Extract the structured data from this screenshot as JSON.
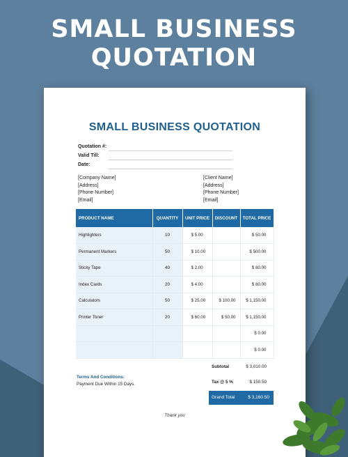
{
  "hero": {
    "title_line1": "SMALL BUSINESS",
    "title_line2": "QUOTATION"
  },
  "doc": {
    "title": "SMALL BUSINESS QUOTATION",
    "meta": [
      {
        "label": "Quotation #:"
      },
      {
        "label": "Valid Till:"
      },
      {
        "label": "Date:"
      }
    ],
    "company": [
      "[Company Name]",
      "[Address]",
      "[Phone Number]",
      "[Email]"
    ],
    "client": [
      "[Client Name]",
      "[Address]",
      "[Phone Number]",
      "[Email]"
    ],
    "table": {
      "headers": [
        "PRODUCT NAME",
        "QUANTITY",
        "UNIT PRICE",
        "DISCOUNT",
        "TOTAL PRICE"
      ],
      "rows": [
        {
          "name": "Highlighters",
          "qty": "10",
          "price": "$ 5.00",
          "discount": "",
          "total": "$ 50.00"
        },
        {
          "name": "Permanent Markers",
          "qty": "50",
          "price": "$ 10.00",
          "discount": "",
          "total": "$ 500.00"
        },
        {
          "name": "Sticky Tape",
          "qty": "40",
          "price": "$ 2.00",
          "discount": "",
          "total": "$ 80.00"
        },
        {
          "name": "Index Cards",
          "qty": "20",
          "price": "$ 4.00",
          "discount": "",
          "total": "$ 80.00"
        },
        {
          "name": "Calculators",
          "qty": "50",
          "price": "$ 25.00",
          "discount": "$ 100.00",
          "total": "$ 1,150.00"
        },
        {
          "name": "Printer Toner",
          "qty": "20",
          "price": "$ 60.00",
          "discount": "$ 50.00",
          "total": "$ 1,150.00"
        },
        {
          "name": "",
          "qty": "",
          "price": "",
          "discount": "",
          "total": "$ 0.00"
        },
        {
          "name": "",
          "qty": "",
          "price": "",
          "discount": "",
          "total": "$ 0.00"
        }
      ]
    },
    "summary": {
      "subtotal_label": "Subtotal",
      "subtotal": "$ 3,010.00",
      "tax_label": "Tax @ 5 %",
      "tax": "$ 150.50",
      "grand_label": "Grand Total",
      "grand": "$ 3,160.50"
    },
    "terms": {
      "title": "Terms And Conditions:",
      "text": "Payment Due Within 15 Days."
    },
    "thanks": "Thank you"
  },
  "colors": {
    "background": "#5d809e",
    "accent": "#1f6aa5",
    "title": "#1f5f8f"
  },
  "icons": [
    "potted-plant-icon"
  ]
}
